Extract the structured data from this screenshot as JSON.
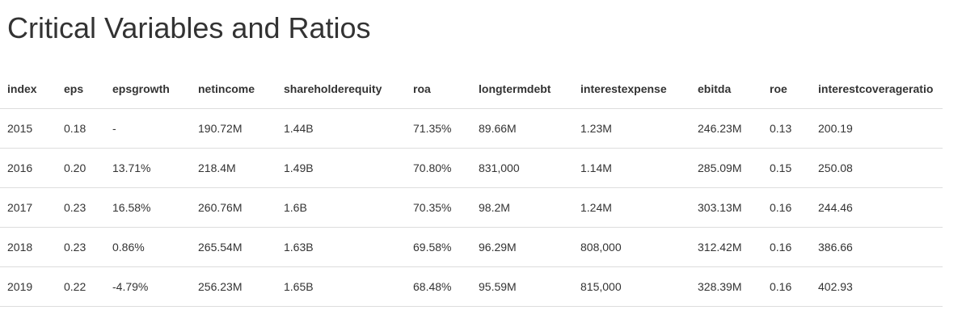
{
  "page": {
    "title": "Critical Variables and Ratios"
  },
  "table": {
    "headers": [
      "index",
      "eps",
      "epsgrowth",
      "netincome",
      "shareholderequity",
      "roa",
      "longtermdebt",
      "interestexpense",
      "ebitda",
      "roe",
      "interestcoverageratio"
    ],
    "rows": [
      [
        "2015",
        "0.18",
        "-",
        "190.72M",
        "1.44B",
        "71.35%",
        "89.66M",
        "1.23M",
        "246.23M",
        "0.13",
        "200.19"
      ],
      [
        "2016",
        "0.20",
        "13.71%",
        "218.4M",
        "1.49B",
        "70.80%",
        "831,000",
        "1.14M",
        "285.09M",
        "0.15",
        "250.08"
      ],
      [
        "2017",
        "0.23",
        "16.58%",
        "260.76M",
        "1.6B",
        "70.35%",
        "98.2M",
        "1.24M",
        "303.13M",
        "0.16",
        "244.46"
      ],
      [
        "2018",
        "0.23",
        "0.86%",
        "265.54M",
        "1.63B",
        "69.58%",
        "96.29M",
        "808,000",
        "312.42M",
        "0.16",
        "386.66"
      ],
      [
        "2019",
        "0.22",
        "-4.79%",
        "256.23M",
        "1.65B",
        "68.48%",
        "95.59M",
        "815,000",
        "328.39M",
        "0.16",
        "402.93"
      ]
    ]
  }
}
